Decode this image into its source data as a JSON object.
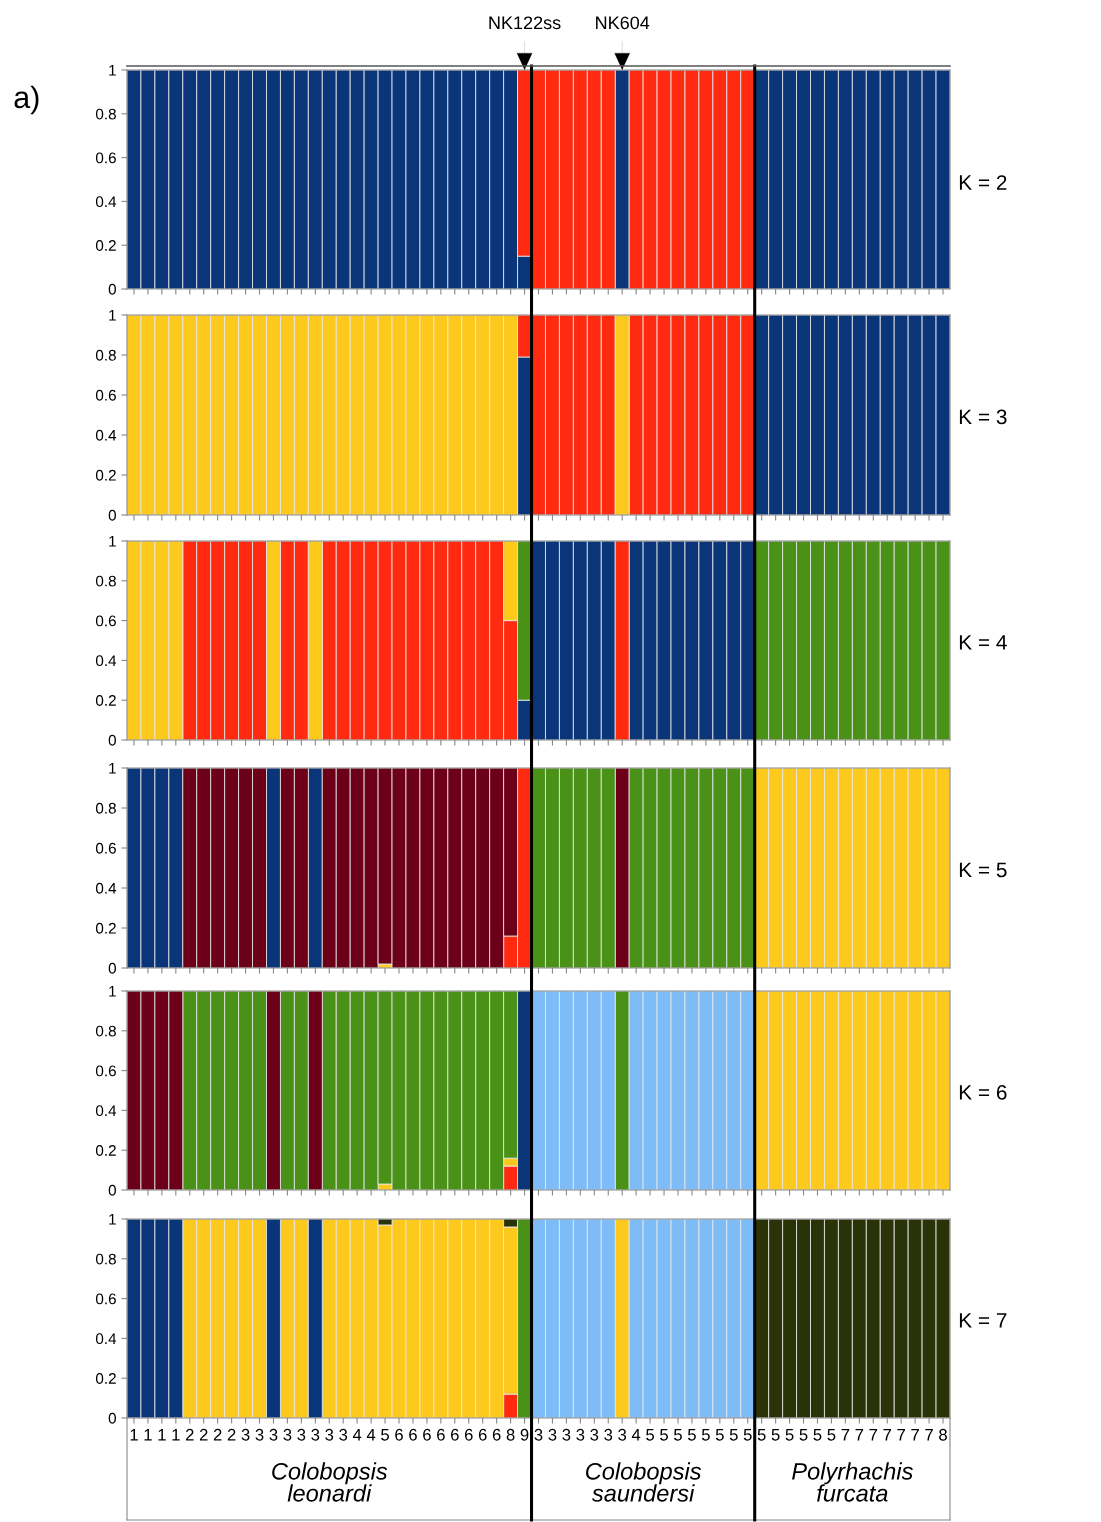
{
  "chart_data": [
    {
      "type": "bar",
      "stacked": true,
      "title": "K = 2",
      "tick_labels": "y",
      "ylim": [
        0,
        1
      ],
      "yticks": [
        0,
        0.2,
        0.4,
        0.6,
        0.8,
        1
      ],
      "annotations": [
        "a)",
        {
          "text": "NK122ss",
          "y": 1
        },
        {
          "text": "NK604",
          "y": 1
        }
      ],
      "categories": [
        "1",
        "1",
        "1",
        "1",
        "2",
        "2",
        "2",
        "2",
        "3",
        "3",
        "3",
        "3",
        "3",
        "3",
        "3",
        "3",
        "4",
        "4",
        "5",
        "6",
        "6",
        "6",
        "6",
        "6",
        "6",
        "6",
        "6",
        "8",
        "9",
        "3",
        "3",
        "3",
        "3",
        "3",
        "3",
        "3",
        "4",
        "5",
        "5",
        "5",
        "5",
        "5",
        "5",
        "5",
        "5",
        "5",
        "5",
        "5",
        "5",
        "5",
        "5",
        "7",
        "7",
        "7",
        "7",
        "7",
        "7",
        "7",
        "8"
      ],
      "series": [
        {
          "color": "#0a3578",
          "values": [
            1,
            1,
            1,
            1,
            1,
            1,
            1,
            1,
            1,
            1,
            1,
            1,
            1,
            1,
            1,
            1,
            1,
            1,
            1,
            1,
            1,
            1,
            1,
            1,
            1,
            1,
            1,
            1,
            0.15,
            null,
            null,
            null,
            null,
            null,
            null,
            1,
            null,
            null,
            null,
            null,
            null,
            null,
            null,
            null,
            null,
            1,
            1,
            1,
            1,
            1,
            1,
            1,
            1,
            1,
            1,
            1,
            1,
            1,
            1
          ]
        },
        {
          "color": "#ff2a0f",
          "values": [
            null,
            null,
            null,
            null,
            null,
            null,
            null,
            null,
            null,
            null,
            null,
            null,
            null,
            null,
            null,
            null,
            null,
            null,
            null,
            null,
            null,
            null,
            null,
            null,
            null,
            null,
            null,
            null,
            0.85,
            1,
            1,
            1,
            1,
            1,
            1,
            null,
            1,
            1,
            1,
            1,
            1,
            1,
            1,
            1,
            1,
            null,
            null,
            null,
            null,
            null,
            null,
            null,
            null,
            null,
            null,
            null,
            null,
            null,
            null
          ]
        }
      ]
    },
    {
      "type": "bar",
      "stacked": true,
      "title": "K = 3",
      "tick_labels": "y",
      "ylim": [
        0,
        1
      ],
      "yticks": [
        0,
        0.2,
        0.4,
        0.6,
        0.8,
        1
      ],
      "categories": [
        "1",
        "1",
        "1",
        "1",
        "2",
        "2",
        "2",
        "2",
        "3",
        "3",
        "3",
        "3",
        "3",
        "3",
        "3",
        "3",
        "4",
        "4",
        "5",
        "6",
        "6",
        "6",
        "6",
        "6",
        "6",
        "6",
        "6",
        "8",
        "9",
        "3",
        "3",
        "3",
        "3",
        "3",
        "3",
        "3",
        "4",
        "5",
        "5",
        "5",
        "5",
        "5",
        "5",
        "5",
        "5",
        "5",
        "5",
        "5",
        "5",
        "5",
        "5",
        "7",
        "7",
        "7",
        "7",
        "7",
        "7",
        "7",
        "8"
      ],
      "series": [
        {
          "color": "#0a3578",
          "values": [
            null,
            null,
            null,
            null,
            null,
            null,
            null,
            null,
            null,
            null,
            null,
            null,
            null,
            null,
            null,
            null,
            null,
            null,
            null,
            null,
            null,
            null,
            null,
            null,
            null,
            null,
            null,
            null,
            0.79,
            null,
            null,
            null,
            null,
            null,
            null,
            null,
            null,
            null,
            null,
            null,
            null,
            null,
            null,
            null,
            null,
            1,
            1,
            1,
            1,
            1,
            1,
            1,
            1,
            1,
            1,
            1,
            1,
            1,
            1
          ]
        },
        {
          "color": "#ff2a0f",
          "values": [
            null,
            null,
            null,
            null,
            null,
            null,
            null,
            null,
            null,
            null,
            null,
            null,
            null,
            null,
            null,
            null,
            null,
            null,
            null,
            null,
            null,
            null,
            null,
            null,
            null,
            null,
            null,
            null,
            0.21,
            1,
            1,
            1,
            1,
            1,
            1,
            null,
            1,
            1,
            1,
            1,
            1,
            1,
            1,
            1,
            1,
            null,
            null,
            null,
            null,
            null,
            null,
            null,
            null,
            null,
            null,
            null,
            null,
            null,
            null
          ]
        },
        {
          "color": "#fcc91c",
          "values": [
            1,
            1,
            1,
            1,
            1,
            1,
            1,
            1,
            1,
            1,
            1,
            1,
            1,
            1,
            1,
            1,
            1,
            1,
            1,
            1,
            1,
            1,
            1,
            1,
            1,
            1,
            1,
            1,
            null,
            null,
            null,
            null,
            null,
            null,
            null,
            1,
            null,
            null,
            null,
            null,
            null,
            null,
            null,
            null,
            null,
            null,
            null,
            null,
            null,
            null,
            null,
            null,
            null,
            null,
            null,
            null,
            null,
            null,
            null
          ]
        }
      ]
    },
    {
      "type": "bar",
      "stacked": true,
      "title": "K = 4",
      "tick_labels": "y",
      "ylim": [
        0,
        1
      ],
      "yticks": [
        0,
        0.2,
        0.4,
        0.6,
        0.8,
        1
      ],
      "categories": [
        "1",
        "1",
        "1",
        "1",
        "2",
        "2",
        "2",
        "2",
        "3",
        "3",
        "3",
        "3",
        "3",
        "3",
        "3",
        "3",
        "4",
        "4",
        "5",
        "6",
        "6",
        "6",
        "6",
        "6",
        "6",
        "6",
        "6",
        "8",
        "9",
        "3",
        "3",
        "3",
        "3",
        "3",
        "3",
        "3",
        "4",
        "5",
        "5",
        "5",
        "5",
        "5",
        "5",
        "5",
        "5",
        "5",
        "5",
        "5",
        "5",
        "5",
        "5",
        "7",
        "7",
        "7",
        "7",
        "7",
        "7",
        "7",
        "8"
      ],
      "series": [
        {
          "color": "#0a3578",
          "values": [
            null,
            null,
            null,
            null,
            null,
            null,
            null,
            null,
            null,
            null,
            null,
            null,
            null,
            null,
            null,
            null,
            null,
            null,
            null,
            null,
            null,
            null,
            null,
            null,
            null,
            null,
            null,
            null,
            0.2,
            1,
            1,
            1,
            1,
            1,
            1,
            null,
            1,
            1,
            1,
            1,
            1,
            1,
            1,
            1,
            1,
            null,
            null,
            null,
            null,
            null,
            null,
            null,
            null,
            null,
            null,
            null,
            null,
            null,
            null
          ]
        },
        {
          "color": "#ff2a0f",
          "values": [
            null,
            null,
            null,
            null,
            1,
            1,
            1,
            1,
            1,
            1,
            null,
            1,
            1,
            null,
            1,
            1,
            1,
            1,
            1,
            1,
            1,
            1,
            1,
            1,
            1,
            1,
            1,
            0.6,
            null,
            null,
            null,
            null,
            null,
            null,
            null,
            1,
            null,
            null,
            null,
            null,
            null,
            null,
            null,
            null,
            null,
            null,
            null,
            null,
            null,
            null,
            null,
            null,
            null,
            null,
            null,
            null,
            null,
            null,
            null
          ]
        },
        {
          "color": "#fcc91c",
          "values": [
            1,
            1,
            1,
            1,
            null,
            null,
            null,
            null,
            null,
            null,
            1,
            null,
            null,
            1,
            null,
            null,
            null,
            null,
            null,
            null,
            null,
            null,
            null,
            null,
            null,
            null,
            null,
            0.4,
            null,
            null,
            null,
            null,
            null,
            null,
            null,
            null,
            null,
            null,
            null,
            null,
            null,
            null,
            null,
            null,
            null,
            null,
            null,
            null,
            null,
            null,
            null,
            null,
            null,
            null,
            null,
            null,
            null,
            null,
            null
          ]
        },
        {
          "color": "#4a9118",
          "values": [
            null,
            null,
            null,
            null,
            null,
            null,
            null,
            null,
            null,
            null,
            null,
            null,
            null,
            null,
            null,
            null,
            null,
            null,
            null,
            null,
            null,
            null,
            null,
            null,
            null,
            null,
            null,
            null,
            0.8,
            null,
            null,
            null,
            null,
            null,
            null,
            null,
            null,
            null,
            null,
            null,
            null,
            null,
            null,
            null,
            null,
            1,
            1,
            1,
            1,
            1,
            1,
            1,
            1,
            1,
            1,
            1,
            1,
            1,
            1
          ]
        }
      ]
    },
    {
      "type": "bar",
      "stacked": true,
      "title": "K = 5",
      "tick_labels": "y",
      "ylim": [
        0,
        1
      ],
      "yticks": [
        0,
        0.2,
        0.4,
        0.6,
        0.8,
        1
      ],
      "categories": [
        "1",
        "1",
        "1",
        "1",
        "2",
        "2",
        "2",
        "2",
        "3",
        "3",
        "3",
        "3",
        "3",
        "3",
        "3",
        "3",
        "4",
        "4",
        "5",
        "6",
        "6",
        "6",
        "6",
        "6",
        "6",
        "6",
        "6",
        "8",
        "9",
        "3",
        "3",
        "3",
        "3",
        "3",
        "3",
        "3",
        "4",
        "5",
        "5",
        "5",
        "5",
        "5",
        "5",
        "5",
        "5",
        "5",
        "5",
        "5",
        "5",
        "5",
        "5",
        "7",
        "7",
        "7",
        "7",
        "7",
        "7",
        "7",
        "8"
      ],
      "series": [
        {
          "color": "#fcc91c",
          "values": [
            null,
            null,
            null,
            null,
            null,
            null,
            null,
            null,
            null,
            null,
            null,
            null,
            null,
            null,
            null,
            null,
            null,
            null,
            0.02,
            null,
            null,
            null,
            null,
            null,
            null,
            null,
            null,
            null,
            null,
            null,
            null,
            null,
            null,
            null,
            null,
            null,
            null,
            null,
            null,
            null,
            null,
            null,
            null,
            null,
            null,
            1,
            1,
            1,
            1,
            1,
            1,
            1,
            1,
            1,
            1,
            1,
            1,
            1,
            1
          ]
        },
        {
          "color": "#ff2a0f",
          "values": [
            null,
            null,
            null,
            null,
            null,
            null,
            null,
            null,
            null,
            null,
            null,
            null,
            null,
            null,
            null,
            null,
            null,
            null,
            null,
            null,
            null,
            null,
            null,
            null,
            null,
            null,
            null,
            0.16,
            1,
            null,
            null,
            null,
            null,
            null,
            null,
            null,
            null,
            null,
            null,
            null,
            null,
            null,
            null,
            null,
            null,
            null,
            null,
            null,
            null,
            null,
            null,
            null,
            null,
            null,
            null,
            null,
            null,
            null,
            null
          ]
        },
        {
          "color": "#0a3578",
          "values": [
            1,
            1,
            1,
            1,
            null,
            null,
            null,
            null,
            null,
            null,
            1,
            null,
            null,
            1,
            null,
            null,
            null,
            null,
            null,
            null,
            null,
            null,
            null,
            null,
            null,
            null,
            null,
            null,
            null,
            null,
            null,
            null,
            null,
            null,
            null,
            null,
            null,
            null,
            null,
            null,
            null,
            null,
            null,
            null,
            null,
            null,
            null,
            null,
            null,
            null,
            null,
            null,
            null,
            null,
            null,
            null,
            null,
            null,
            null
          ]
        },
        {
          "color": "#6b0018",
          "values": [
            null,
            null,
            null,
            null,
            1,
            1,
            1,
            1,
            1,
            1,
            null,
            1,
            1,
            null,
            1,
            1,
            1,
            1,
            0.98,
            1,
            1,
            1,
            1,
            1,
            1,
            1,
            1,
            0.84,
            null,
            null,
            null,
            null,
            null,
            null,
            null,
            1,
            null,
            null,
            null,
            null,
            null,
            null,
            null,
            null,
            null,
            null,
            null,
            null,
            null,
            null,
            null,
            null,
            null,
            null,
            null,
            null,
            null,
            null,
            null
          ]
        },
        {
          "color": "#4a9118",
          "values": [
            null,
            null,
            null,
            null,
            null,
            null,
            null,
            null,
            null,
            null,
            null,
            null,
            null,
            null,
            null,
            null,
            null,
            null,
            null,
            null,
            null,
            null,
            null,
            null,
            null,
            null,
            null,
            null,
            null,
            1,
            1,
            1,
            1,
            1,
            1,
            null,
            1,
            1,
            1,
            1,
            1,
            1,
            1,
            1,
            1,
            null,
            null,
            null,
            null,
            null,
            null,
            null,
            null,
            null,
            null,
            null,
            null,
            null,
            null
          ]
        }
      ]
    },
    {
      "type": "bar",
      "stacked": true,
      "title": "K = 6",
      "tick_labels": "y",
      "ylim": [
        0,
        1
      ],
      "yticks": [
        0,
        0.2,
        0.4,
        0.6,
        0.8,
        1
      ],
      "categories": [
        "1",
        "1",
        "1",
        "1",
        "2",
        "2",
        "2",
        "2",
        "3",
        "3",
        "3",
        "3",
        "3",
        "3",
        "3",
        "3",
        "4",
        "4",
        "5",
        "6",
        "6",
        "6",
        "6",
        "6",
        "6",
        "6",
        "6",
        "8",
        "9",
        "3",
        "3",
        "3",
        "3",
        "3",
        "3",
        "3",
        "4",
        "5",
        "5",
        "5",
        "5",
        "5",
        "5",
        "5",
        "5",
        "5",
        "5",
        "5",
        "5",
        "5",
        "5",
        "7",
        "7",
        "7",
        "7",
        "7",
        "7",
        "7",
        "8"
      ],
      "series": [
        {
          "color": "#ff2a0f",
          "values": [
            null,
            null,
            null,
            null,
            null,
            null,
            null,
            null,
            null,
            null,
            null,
            null,
            null,
            null,
            null,
            null,
            null,
            null,
            null,
            null,
            null,
            null,
            null,
            null,
            null,
            null,
            null,
            0.12,
            null,
            null,
            null,
            null,
            null,
            null,
            null,
            null,
            null,
            null,
            null,
            null,
            null,
            null,
            null,
            null,
            null,
            null,
            null,
            null,
            null,
            null,
            null,
            null,
            null,
            null,
            null,
            null,
            null,
            null,
            null
          ]
        },
        {
          "color": "#fcc91c",
          "values": [
            null,
            null,
            null,
            null,
            null,
            null,
            null,
            null,
            null,
            null,
            null,
            null,
            null,
            null,
            null,
            null,
            null,
            null,
            0.03,
            null,
            null,
            null,
            null,
            null,
            null,
            null,
            null,
            0.04,
            null,
            null,
            null,
            null,
            null,
            null,
            null,
            null,
            null,
            null,
            null,
            null,
            null,
            null,
            null,
            null,
            null,
            1,
            1,
            1,
            1,
            1,
            1,
            1,
            1,
            1,
            1,
            1,
            1,
            1,
            1
          ]
        },
        {
          "color": "#4a9118",
          "values": [
            null,
            null,
            null,
            null,
            1,
            1,
            1,
            1,
            1,
            1,
            null,
            1,
            1,
            null,
            1,
            1,
            1,
            1,
            0.97,
            1,
            1,
            1,
            1,
            1,
            1,
            1,
            1,
            0.84,
            null,
            null,
            null,
            null,
            null,
            null,
            null,
            1,
            null,
            null,
            null,
            null,
            null,
            null,
            null,
            null,
            null,
            null,
            null,
            null,
            null,
            null,
            null,
            null,
            null,
            null,
            null,
            null,
            null,
            null,
            null
          ]
        },
        {
          "color": "#6b0018",
          "values": [
            1,
            1,
            1,
            1,
            null,
            null,
            null,
            null,
            null,
            null,
            1,
            null,
            null,
            1,
            null,
            null,
            null,
            null,
            null,
            null,
            null,
            null,
            null,
            null,
            null,
            null,
            null,
            null,
            null,
            null,
            null,
            null,
            null,
            null,
            null,
            null,
            null,
            null,
            null,
            null,
            null,
            null,
            null,
            null,
            null,
            null,
            null,
            null,
            null,
            null,
            null,
            null,
            null,
            null,
            null,
            null,
            null,
            null,
            null
          ]
        },
        {
          "color": "#0a3578",
          "values": [
            null,
            null,
            null,
            null,
            null,
            null,
            null,
            null,
            null,
            null,
            null,
            null,
            null,
            null,
            null,
            null,
            null,
            null,
            null,
            null,
            null,
            null,
            null,
            null,
            null,
            null,
            null,
            null,
            1,
            null,
            null,
            null,
            null,
            null,
            null,
            null,
            null,
            null,
            null,
            null,
            null,
            null,
            null,
            null,
            null,
            null,
            null,
            null,
            null,
            null,
            null,
            null,
            null,
            null,
            null,
            null,
            null,
            null,
            null
          ]
        },
        {
          "color": "#7dbcf7",
          "values": [
            null,
            null,
            null,
            null,
            null,
            null,
            null,
            null,
            null,
            null,
            null,
            null,
            null,
            null,
            null,
            null,
            null,
            null,
            null,
            null,
            null,
            null,
            null,
            null,
            null,
            null,
            null,
            null,
            null,
            1,
            1,
            1,
            1,
            1,
            1,
            null,
            1,
            1,
            1,
            1,
            1,
            1,
            1,
            1,
            1,
            null,
            null,
            null,
            null,
            null,
            null,
            null,
            null,
            null,
            null,
            null,
            null,
            null,
            null
          ]
        }
      ]
    },
    {
      "type": "bar",
      "stacked": true,
      "title": "K = 7",
      "ylim": [
        0,
        1
      ],
      "yticks": [
        0,
        0.2,
        0.4,
        0.6,
        0.8,
        1
      ],
      "annotations": [
        "Colobopsis\nleonardi",
        "Colobopsis\nsaundersi",
        "Polyrhachis\nfurcata"
      ],
      "categories": [
        "1",
        "1",
        "1",
        "1",
        "2",
        "2",
        "2",
        "2",
        "3",
        "3",
        "3",
        "3",
        "3",
        "3",
        "3",
        "3",
        "4",
        "4",
        "5",
        "6",
        "6",
        "6",
        "6",
        "6",
        "6",
        "6",
        "6",
        "8",
        "9",
        "3",
        "3",
        "3",
        "3",
        "3",
        "3",
        "3",
        "4",
        "5",
        "5",
        "5",
        "5",
        "5",
        "5",
        "5",
        "5",
        "5",
        "5",
        "5",
        "5",
        "5",
        "5",
        "7",
        "7",
        "7",
        "7",
        "7",
        "7",
        "7",
        "8"
      ],
      "series": [
        {
          "color": "#ff2a0f",
          "values": [
            null,
            null,
            null,
            null,
            null,
            null,
            null,
            null,
            null,
            null,
            null,
            null,
            null,
            null,
            null,
            null,
            null,
            null,
            null,
            null,
            null,
            null,
            null,
            null,
            null,
            null,
            null,
            0.12,
            null,
            null,
            null,
            null,
            null,
            null,
            null,
            null,
            null,
            null,
            null,
            null,
            null,
            null,
            null,
            null,
            null,
            null,
            null,
            null,
            null,
            null,
            null,
            null,
            null,
            null,
            null,
            null,
            null,
            null,
            null
          ]
        },
        {
          "color": "#fcc91c",
          "values": [
            null,
            null,
            null,
            null,
            1,
            1,
            1,
            1,
            1,
            1,
            null,
            1,
            1,
            null,
            1,
            1,
            1,
            1,
            0.97,
            1,
            1,
            1,
            1,
            1,
            1,
            1,
            1,
            0.84,
            null,
            null,
            null,
            null,
            null,
            null,
            null,
            1,
            null,
            null,
            null,
            null,
            null,
            null,
            null,
            null,
            null,
            null,
            null,
            null,
            null,
            null,
            null,
            null,
            null,
            null,
            null,
            null,
            null,
            null,
            null
          ]
        },
        {
          "color": "#2a3308",
          "values": [
            null,
            null,
            null,
            null,
            null,
            null,
            null,
            null,
            null,
            null,
            null,
            null,
            null,
            null,
            null,
            null,
            null,
            null,
            0.03,
            null,
            null,
            null,
            null,
            null,
            null,
            null,
            null,
            0.04,
            null,
            null,
            null,
            null,
            null,
            null,
            null,
            null,
            null,
            null,
            null,
            null,
            null,
            null,
            null,
            null,
            null,
            1,
            1,
            1,
            1,
            1,
            1,
            1,
            1,
            1,
            1,
            1,
            1,
            1,
            1
          ]
        },
        {
          "color": "#0a3578",
          "values": [
            1,
            1,
            1,
            1,
            null,
            null,
            null,
            null,
            null,
            null,
            1,
            null,
            null,
            1,
            null,
            null,
            null,
            null,
            null,
            null,
            null,
            null,
            null,
            null,
            null,
            null,
            null,
            null,
            null,
            null,
            null,
            null,
            null,
            null,
            null,
            null,
            null,
            null,
            null,
            null,
            null,
            null,
            null,
            null,
            null,
            null,
            null,
            null,
            null,
            null,
            null,
            null,
            null,
            null,
            null,
            null,
            null,
            null,
            null
          ]
        },
        {
          "color": "#4a9118",
          "values": [
            null,
            null,
            null,
            null,
            null,
            null,
            null,
            null,
            null,
            null,
            null,
            null,
            null,
            null,
            null,
            null,
            null,
            null,
            null,
            null,
            null,
            null,
            null,
            null,
            null,
            null,
            null,
            null,
            1,
            null,
            null,
            null,
            null,
            null,
            null,
            null,
            null,
            null,
            null,
            null,
            null,
            null,
            null,
            null,
            null,
            null,
            null,
            null,
            null,
            null,
            null,
            null,
            null,
            null,
            null,
            null,
            null,
            null,
            null
          ]
        },
        {
          "color": "#7dbcf7",
          "values": [
            null,
            null,
            null,
            null,
            null,
            null,
            null,
            null,
            null,
            null,
            null,
            null,
            null,
            null,
            null,
            null,
            null,
            null,
            null,
            null,
            null,
            null,
            null,
            null,
            null,
            null,
            null,
            null,
            null,
            1,
            1,
            1,
            1,
            1,
            1,
            null,
            1,
            1,
            1,
            1,
            1,
            1,
            1,
            1,
            1,
            null,
            null,
            null,
            null,
            null,
            null,
            null,
            null,
            null,
            null,
            null,
            null,
            null,
            null
          ]
        }
      ]
    }
  ]
}
